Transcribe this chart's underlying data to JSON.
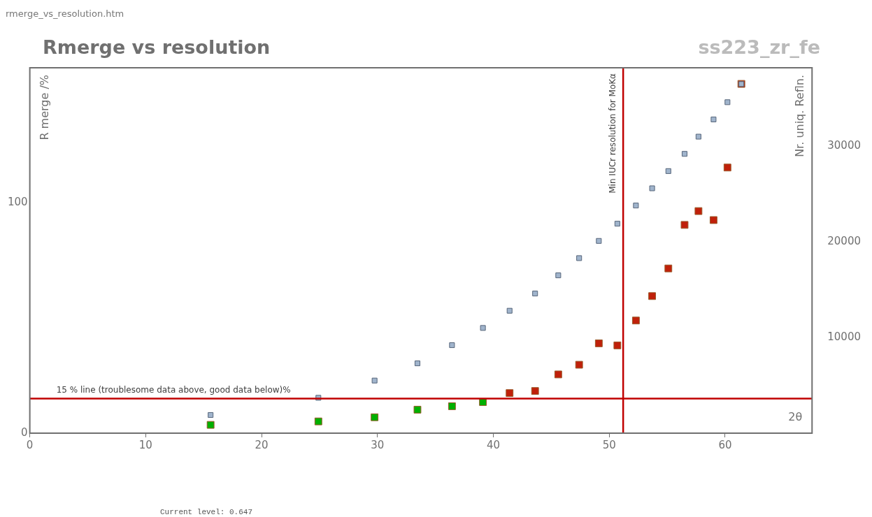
{
  "chart_data": {
    "type": "scatter",
    "title": "Rmerge vs resolution",
    "subtitle": "ss223_zr_fe",
    "xlabel": "2θ",
    "ylabel": "R merge /%",
    "y2label": "Nr. uniq. Refln.",
    "x": [
      15.6,
      24.9,
      29.75,
      33.45,
      36.43,
      39.1,
      41.4,
      43.6,
      45.6,
      47.4,
      49.1,
      50.7,
      52.3,
      53.7,
      55.1,
      56.5,
      57.7,
      59.0,
      60.2,
      61.4
    ],
    "series": [
      {
        "colors": [
          "#00b000",
          "#00b000",
          "#00b000",
          "#00b000",
          "#00b000",
          "#00b000",
          "#c0200a",
          "#c0200a",
          "#c0200a",
          "#c0200a",
          "#c0200a",
          "#c0200a",
          "#c0200a",
          "#c0200a",
          "#c0200a",
          "#c0200a",
          "#c0200a",
          "#c0200a",
          "#c0200a",
          "#c0200a"
        ],
        "values": [
          3.6,
          5.1,
          6.9,
          10.2,
          11.7,
          13.5,
          17.4,
          18.3,
          25.5,
          29.7,
          39,
          38.1,
          48.9,
          59.5,
          71.5,
          90.4,
          96.4,
          92.5,
          115.3,
          151.6
        ]
      },
      {
        "color": "#a0b4cc",
        "axis": "y2",
        "values": [
          1900,
          3700,
          5500,
          7300,
          9200,
          11000,
          12800,
          14600,
          16500,
          18300,
          20100,
          21900,
          23800,
          25600,
          27400,
          29200,
          31000,
          32800,
          34600,
          36500
        ]
      }
    ],
    "xlim": [
      0,
      67.5
    ],
    "xticks": [
      0,
      10,
      20,
      30,
      40,
      50,
      60
    ],
    "ylim": [
      0,
      158.6
    ],
    "yticks": [
      0,
      100
    ],
    "y2lim": [
      0,
      38200
    ],
    "y2ticks": [
      10000,
      20000,
      30000
    ],
    "ref_lines": [
      {
        "axis": "y",
        "value": 15,
        "label": "15 % line (troublesome data above, good data below)%",
        "color": "#c00000"
      },
      {
        "axis": "x",
        "value": 51.2,
        "label": "Min IUCr resolution for MoKα",
        "color": "#c00000"
      }
    ],
    "annotations": [
      "rmerge_vs_resolution.htm",
      "Current level: 0.647"
    ],
    "marker": "square",
    "grid": false,
    "legend": false
  }
}
